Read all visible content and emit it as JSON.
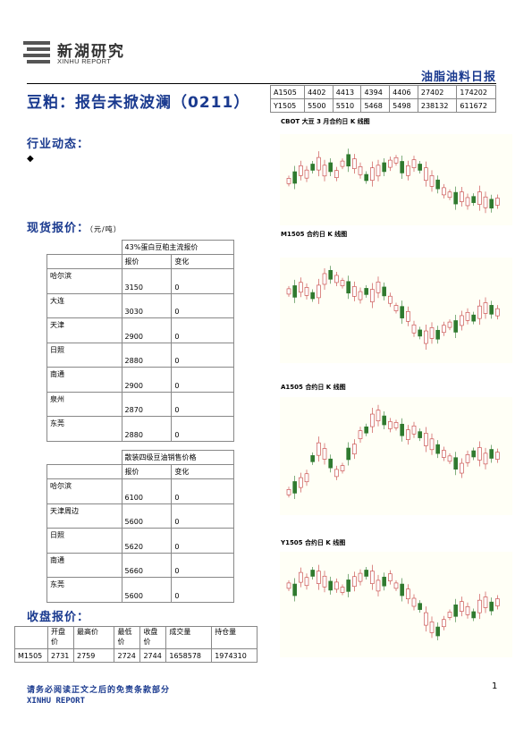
{
  "header": {
    "logo_cn": "新湖研究",
    "logo_en": "XINHU REPORT",
    "report_type": "油脂油料日报"
  },
  "headline": "豆粕：报告未掀波澜（0211）",
  "top_table": {
    "rows": [
      [
        "A1505",
        "4402",
        "4413",
        "4394",
        "4406",
        "27402",
        "174202"
      ],
      [
        "Y1505",
        "5500",
        "5510",
        "5468",
        "5498",
        "238132",
        "611672"
      ]
    ]
  },
  "sections": {
    "industry": "行业动态：",
    "bullet": "◆",
    "spot": "现货报价：",
    "spot_unit": "（元/吨）",
    "close": "收盘报价："
  },
  "meal_table": {
    "title": "43%蛋白豆粕主流报价",
    "col_price": "报价",
    "col_change": "变化",
    "rows": [
      {
        "city": "哈尔滨",
        "price": "3150",
        "change": "0"
      },
      {
        "city": "大连",
        "price": "3030",
        "change": "0"
      },
      {
        "city": "天津",
        "price": "2900",
        "change": "0"
      },
      {
        "city": "日照",
        "price": "2880",
        "change": "0"
      },
      {
        "city": "南通",
        "price": "2900",
        "change": "0"
      },
      {
        "city": "泉州",
        "price": "2870",
        "change": "0"
      },
      {
        "city": "东莞",
        "price": "2880",
        "change": "0"
      }
    ]
  },
  "oil_table": {
    "title": "散装四级豆油销售价格",
    "col_price": "报价",
    "col_change": "变化",
    "rows": [
      {
        "city": "哈尔滨",
        "price": "6100",
        "change": "0"
      },
      {
        "city": "天津周边",
        "price": "5600",
        "change": "0"
      },
      {
        "city": "日照",
        "price": "5620",
        "change": "0"
      },
      {
        "city": "南通",
        "price": "5660",
        "change": "0"
      },
      {
        "city": "东莞",
        "price": "5600",
        "change": "0"
      }
    ]
  },
  "close_table": {
    "headers": [
      "",
      "开盘价",
      "最高价",
      "最低价",
      "收盘价",
      "成交量",
      "持仓量"
    ],
    "rows": [
      [
        "M1505",
        "2731",
        "2759",
        "2724",
        "2744",
        "1658578",
        "1974310"
      ]
    ]
  },
  "charts": [
    {
      "title": "CBOT 大豆 3 月合约日 K 线图",
      "up_color": "#c43c3c",
      "down_color": "#2f7a2f",
      "bg": "#fffff6"
    },
    {
      "title": "M1505 合约日 K 线图",
      "up_color": "#c43c3c",
      "down_color": "#2f7a2f",
      "bg": "#fffff6"
    },
    {
      "title": "A1505 合约日 K 线图",
      "up_color": "#c43c3c",
      "down_color": "#2f7a2f",
      "bg": "#fffff6"
    },
    {
      "title": "Y1505 合约日 K 线图",
      "up_color": "#c43c3c",
      "down_color": "#2f7a2f",
      "bg": "#fffff6"
    }
  ],
  "footer": {
    "note": "请务必阅读正文之后的免责条款部分",
    "brand": "XINHU REPORT",
    "page": "1"
  }
}
